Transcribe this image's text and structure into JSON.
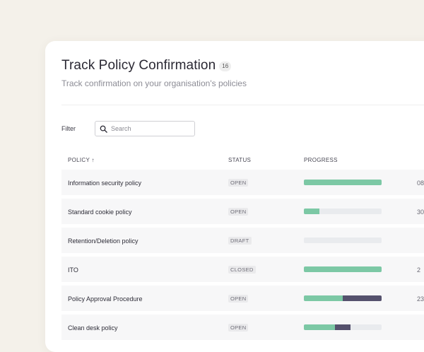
{
  "header": {
    "title": "Track Policy Confirmation",
    "count": "16",
    "subtitle": "Track confirmation on your organisation's policies"
  },
  "filter": {
    "label": "Filter",
    "search_placeholder": "Search",
    "search_value": ""
  },
  "table": {
    "columns": {
      "policy": "POLICY ↑",
      "status": "STATUS",
      "progress": "PROGRESS"
    },
    "rows": [
      {
        "name": "Information security policy",
        "status": "OPEN",
        "progress_confirmed": 1.0,
        "progress_other": 0.0,
        "figure": "08"
      },
      {
        "name": "Standard cookie policy",
        "status": "OPEN",
        "progress_confirmed": 0.2,
        "progress_other": 0.0,
        "figure": "30"
      },
      {
        "name": "Retention/Deletion policy",
        "status": "DRAFT",
        "progress_confirmed": 0.0,
        "progress_other": 0.0,
        "figure": ""
      },
      {
        "name": "ITO",
        "status": "CLOSED",
        "progress_confirmed": 1.0,
        "progress_other": 0.0,
        "figure": "2"
      },
      {
        "name": "Policy Approval Procedure",
        "status": "OPEN",
        "progress_confirmed": 0.5,
        "progress_other": 0.5,
        "figure": "23"
      },
      {
        "name": "Clean desk policy",
        "status": "OPEN",
        "progress_confirmed": 0.4,
        "progress_other": 0.2,
        "figure": ""
      }
    ]
  },
  "colors": {
    "progress_confirmed": "#7cc8a5",
    "progress_other": "#55516d",
    "progress_track": "#e9ebee"
  },
  "icons": {
    "search": "search-icon"
  }
}
